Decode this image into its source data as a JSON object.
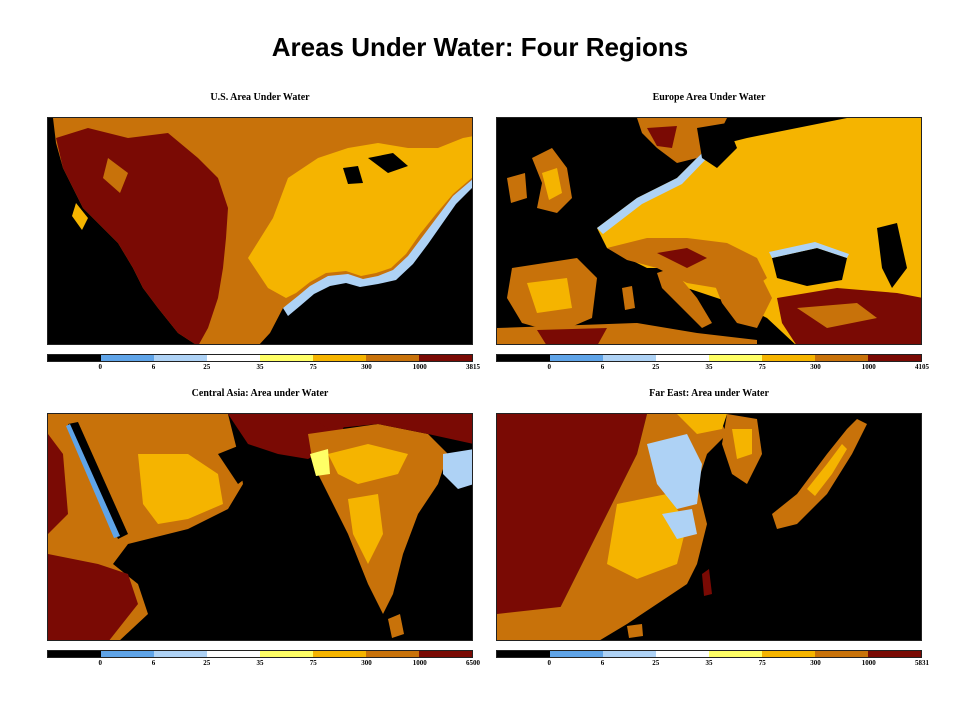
{
  "title": "Areas Under Water: Four Regions",
  "colorbar": {
    "colors": [
      "#000000",
      "#5fa4e8",
      "#aed2f5",
      "#ffffff",
      "#ffff66",
      "#f5b400",
      "#c8720a",
      "#7a0a04"
    ],
    "tick_labels": [
      "0",
      "6",
      "25",
      "35",
      "75",
      "300",
      "1000"
    ]
  },
  "panels": [
    {
      "title": "U.S. Area Under Water",
      "max_label": "3815"
    },
    {
      "title": "Europe Area Under Water",
      "max_label": "4105"
    },
    {
      "title": "Central Asia: Area under Water",
      "max_label": "6500"
    },
    {
      "title": "Far East: Area under Water",
      "max_label": "5831"
    }
  ]
}
